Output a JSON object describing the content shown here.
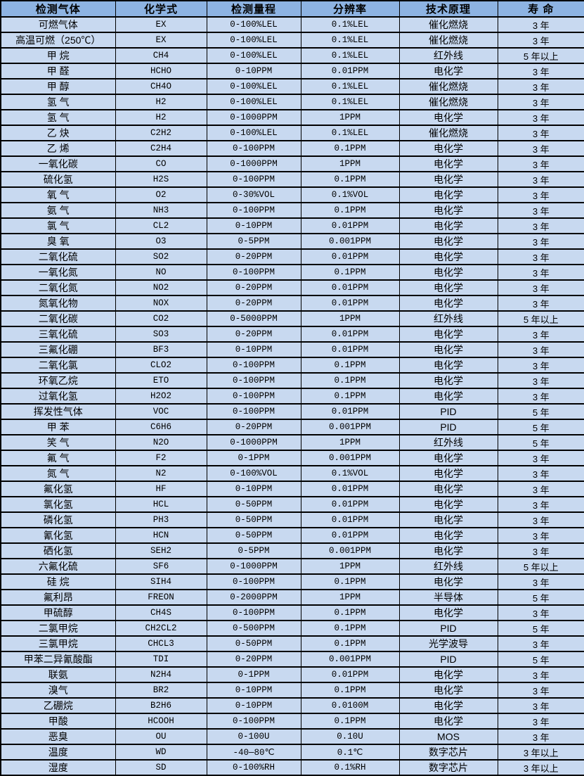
{
  "table": {
    "headers": [
      "检测气体",
      "化学式",
      "检测量程",
      "分辨率",
      "技术原理",
      "寿 命"
    ],
    "rows": [
      [
        "可燃气体",
        "EX",
        "0-100%LEL",
        "0.1%LEL",
        "催化燃烧",
        "3 年"
      ],
      [
        "高温可燃（250℃）",
        "EX",
        "0-100%LEL",
        "0.1%LEL",
        "催化燃烧",
        "3 年"
      ],
      [
        "甲 烷",
        "CH4",
        "0-100%LEL",
        "0.1%LEL",
        "红外线",
        "5 年以上"
      ],
      [
        "甲 醛",
        "HCHO",
        "0-10PPM",
        "0.01PPM",
        "电化学",
        "3 年"
      ],
      [
        "甲 醇",
        "CH4O",
        "0-100%LEL",
        "0.1%LEL",
        "催化燃烧",
        "3 年"
      ],
      [
        "氢 气",
        "H2",
        "0-100%LEL",
        "0.1%LEL",
        "催化燃烧",
        "3 年"
      ],
      [
        "氢 气",
        "H2",
        "0-1000PPM",
        "1PPM",
        "电化学",
        "3 年"
      ],
      [
        "乙 炔",
        "C2H2",
        "0-100%LEL",
        "0.1%LEL",
        "催化燃烧",
        "3 年"
      ],
      [
        "乙 烯",
        "C2H4",
        "0-100PPM",
        "0.1PPM",
        "电化学",
        "3 年"
      ],
      [
        "一氧化碳",
        "CO",
        "0-1000PPM",
        "1PPM",
        "电化学",
        "3 年"
      ],
      [
        "硫化氢",
        "H2S",
        "0-100PPM",
        "0.1PPM",
        "电化学",
        "3 年"
      ],
      [
        "氧 气",
        "O2",
        "0-30%VOL",
        "0.1%VOL",
        "电化学",
        "3 年"
      ],
      [
        "氨 气",
        "NH3",
        "0-100PPM",
        "0.1PPM",
        "电化学",
        "3 年"
      ],
      [
        "氯 气",
        "CL2",
        "0-10PPM",
        "0.01PPM",
        "电化学",
        "3 年"
      ],
      [
        "臭 氧",
        "O3",
        "0-5PPM",
        "0.001PPM",
        "电化学",
        "3 年"
      ],
      [
        "二氧化硫",
        "SO2",
        "0-20PPM",
        "0.01PPM",
        "电化学",
        "3 年"
      ],
      [
        "一氧化氮",
        "NO",
        "0-100PPM",
        "0.1PPM",
        "电化学",
        "3 年"
      ],
      [
        "二氧化氮",
        "NO2",
        "0-20PPM",
        "0.01PPM",
        "电化学",
        "3 年"
      ],
      [
        "氮氧化物",
        "NOX",
        "0-20PPM",
        "0.01PPM",
        "电化学",
        "3 年"
      ],
      [
        "二氧化碳",
        "CO2",
        "0-5000PPM",
        "1PPM",
        "红外线",
        "5 年以上"
      ],
      [
        "三氧化硫",
        "SO3",
        "0-20PPM",
        "0.01PPM",
        "电化学",
        "3 年"
      ],
      [
        "三氟化硼",
        "BF3",
        "0-10PPM",
        "0.01PPM",
        "电化学",
        "3 年"
      ],
      [
        "二氧化氯",
        "CLO2",
        "0-100PPM",
        "0.1PPM",
        "电化学",
        "3 年"
      ],
      [
        "环氧乙烷",
        "ETO",
        "0-100PPM",
        "0.1PPM",
        "电化学",
        "3 年"
      ],
      [
        "过氧化氢",
        "H2O2",
        "0-100PPM",
        "0.1PPM",
        "电化学",
        "3 年"
      ],
      [
        "挥发性气体",
        "VOC",
        "0-100PPM",
        "0.01PPM",
        "PID",
        "5 年"
      ],
      [
        "甲 苯",
        "C6H6",
        "0-20PPM",
        "0.001PPM",
        "PID",
        "5 年"
      ],
      [
        "笑 气",
        "N2O",
        "0-1000PPM",
        "1PPM",
        "红外线",
        "5 年"
      ],
      [
        "氟 气",
        "F2",
        "0-1PPM",
        "0.001PPM",
        "电化学",
        "3 年"
      ],
      [
        "氮 气",
        "N2",
        "0-100%VOL",
        "0.1%VOL",
        "电化学",
        "3 年"
      ],
      [
        "氟化氢",
        "HF",
        "0-10PPM",
        "0.01PPM",
        "电化学",
        "3 年"
      ],
      [
        "氯化氢",
        "HCL",
        "0-50PPM",
        "0.01PPM",
        "电化学",
        "3 年"
      ],
      [
        "磷化氢",
        "PH3",
        "0-50PPM",
        "0.01PPM",
        "电化学",
        "3 年"
      ],
      [
        "氰化氢",
        "HCN",
        "0-50PPM",
        "0.01PPM",
        "电化学",
        "3 年"
      ],
      [
        "硒化氢",
        "SEH2",
        "0-5PPM",
        "0.001PPM",
        "电化学",
        "3 年"
      ],
      [
        "六氟化硫",
        "SF6",
        "0-1000PPM",
        "1PPM",
        "红外线",
        "5 年以上"
      ],
      [
        "硅 烷",
        "SIH4",
        "0-100PPM",
        "0.1PPM",
        "电化学",
        "3 年"
      ],
      [
        "氟利昂",
        "FREON",
        "0-2000PPM",
        "1PPM",
        "半导体",
        "5 年"
      ],
      [
        "甲硫醇",
        "CH4S",
        "0-100PPM",
        "0.1PPM",
        "电化学",
        "3 年"
      ],
      [
        "二氯甲烷",
        "CH2CL2",
        "0-500PPM",
        "0.1PPM",
        "PID",
        "5 年"
      ],
      [
        "三氯甲烷",
        "CHCL3",
        "0-50PPM",
        "0.1PPM",
        "光学波导",
        "3 年"
      ],
      [
        "甲苯二异氰酸酯",
        "TDI",
        "0-20PPM",
        "0.001PPM",
        "PID",
        "5 年"
      ],
      [
        "联氨",
        "N2H4",
        "0-1PPM",
        "0.01PPM",
        "电化学",
        "3 年"
      ],
      [
        "溴气",
        "BR2",
        "0-10PPM",
        "0.1PPM",
        "电化学",
        "3 年"
      ],
      [
        "乙硼烷",
        "B2H6",
        "0-10PPM",
        "0.0100M",
        "电化学",
        "3 年"
      ],
      [
        "甲酸",
        "HCOOH",
        "0-100PPM",
        "0.1PPM",
        "电化学",
        "3 年"
      ],
      [
        "恶臭",
        "OU",
        "0-100U",
        "0.10U",
        "MOS",
        "3 年"
      ],
      [
        "温度",
        "WD",
        "-40—80℃",
        "0.1℃",
        "数字芯片",
        "3 年以上"
      ],
      [
        "湿度",
        "SD",
        "0-100%RH",
        "0.1%RH",
        "数字芯片",
        "3 年以上"
      ]
    ]
  },
  "colors": {
    "header_bg": "#8db3e2",
    "row_bg": "#c8d9f0",
    "border": "#000000",
    "text": "#000000"
  }
}
